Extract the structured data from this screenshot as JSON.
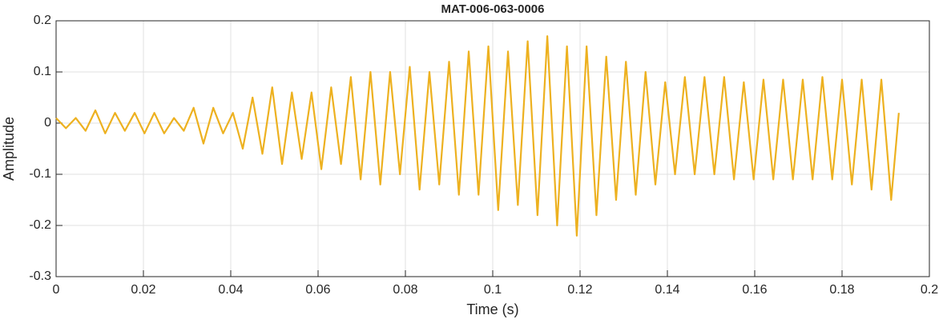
{
  "chart_data": {
    "type": "line",
    "title": "MAT-006-063-0006",
    "xlabel": "Time (s)",
    "ylabel": "Amplitude",
    "x": [
      0,
      0.00225,
      0.0045,
      0.00675,
      0.009,
      0.01125,
      0.0135,
      0.01575,
      0.018,
      0.02025,
      0.0225,
      0.02475,
      0.027,
      0.02925,
      0.0315,
      0.03375,
      0.036,
      0.03825,
      0.0405,
      0.04275,
      0.045,
      0.04725,
      0.0495,
      0.05175,
      0.054,
      0.05625,
      0.0585,
      0.06075,
      0.063,
      0.06525,
      0.0675,
      0.06975,
      0.072,
      0.07425,
      0.0765,
      0.07875,
      0.081,
      0.08325,
      0.0855,
      0.08775,
      0.09,
      0.09225,
      0.0945,
      0.09675,
      0.099,
      0.10125,
      0.1035,
      0.10575,
      0.108,
      0.11025,
      0.1125,
      0.11475,
      0.117,
      0.11925,
      0.1215,
      0.12375,
      0.126,
      0.12825,
      0.1305,
      0.13275,
      0.135,
      0.13725,
      0.1395,
      0.14175,
      0.144,
      0.14625,
      0.1485,
      0.15075,
      0.153,
      0.15525,
      0.1575,
      0.15975,
      0.162,
      0.16425,
      0.1665,
      0.16875,
      0.171,
      0.17325,
      0.1755,
      0.17775,
      0.18,
      0.18225,
      0.1845,
      0.18675,
      0.189,
      0.19125,
      0.193
    ],
    "series": [
      {
        "name": "Amplitude",
        "color": "#EDB120",
        "values": [
          0.01,
          -0.01,
          0.01,
          -0.015,
          0.025,
          -0.02,
          0.02,
          -0.015,
          0.02,
          -0.02,
          0.02,
          -0.02,
          0.01,
          -0.015,
          0.03,
          -0.04,
          0.03,
          -0.02,
          0.02,
          -0.05,
          0.05,
          -0.06,
          0.07,
          -0.08,
          0.06,
          -0.07,
          0.06,
          -0.09,
          0.07,
          -0.08,
          0.09,
          -0.11,
          0.1,
          -0.12,
          0.1,
          -0.1,
          0.11,
          -0.13,
          0.1,
          -0.12,
          0.12,
          -0.14,
          0.14,
          -0.14,
          0.15,
          -0.17,
          0.14,
          -0.16,
          0.16,
          -0.18,
          0.17,
          -0.2,
          0.15,
          -0.22,
          0.15,
          -0.18,
          0.13,
          -0.15,
          0.12,
          -0.14,
          0.1,
          -0.12,
          0.08,
          -0.1,
          0.09,
          -0.1,
          0.09,
          -0.1,
          0.09,
          -0.11,
          0.08,
          -0.11,
          0.085,
          -0.11,
          0.085,
          -0.11,
          0.085,
          -0.11,
          0.09,
          -0.11,
          0.085,
          -0.12,
          0.085,
          -0.13,
          0.085,
          -0.15,
          0.02
        ]
      }
    ],
    "xlim": [
      0,
      0.2
    ],
    "xticks": [
      0,
      0.02,
      0.04,
      0.06,
      0.08,
      0.1,
      0.12,
      0.14,
      0.16,
      0.18,
      0.2
    ],
    "ylim": [
      -0.3,
      0.2
    ],
    "yticks": [
      -0.3,
      -0.2,
      -0.1,
      0,
      0.1,
      0.2
    ],
    "grid": true
  }
}
